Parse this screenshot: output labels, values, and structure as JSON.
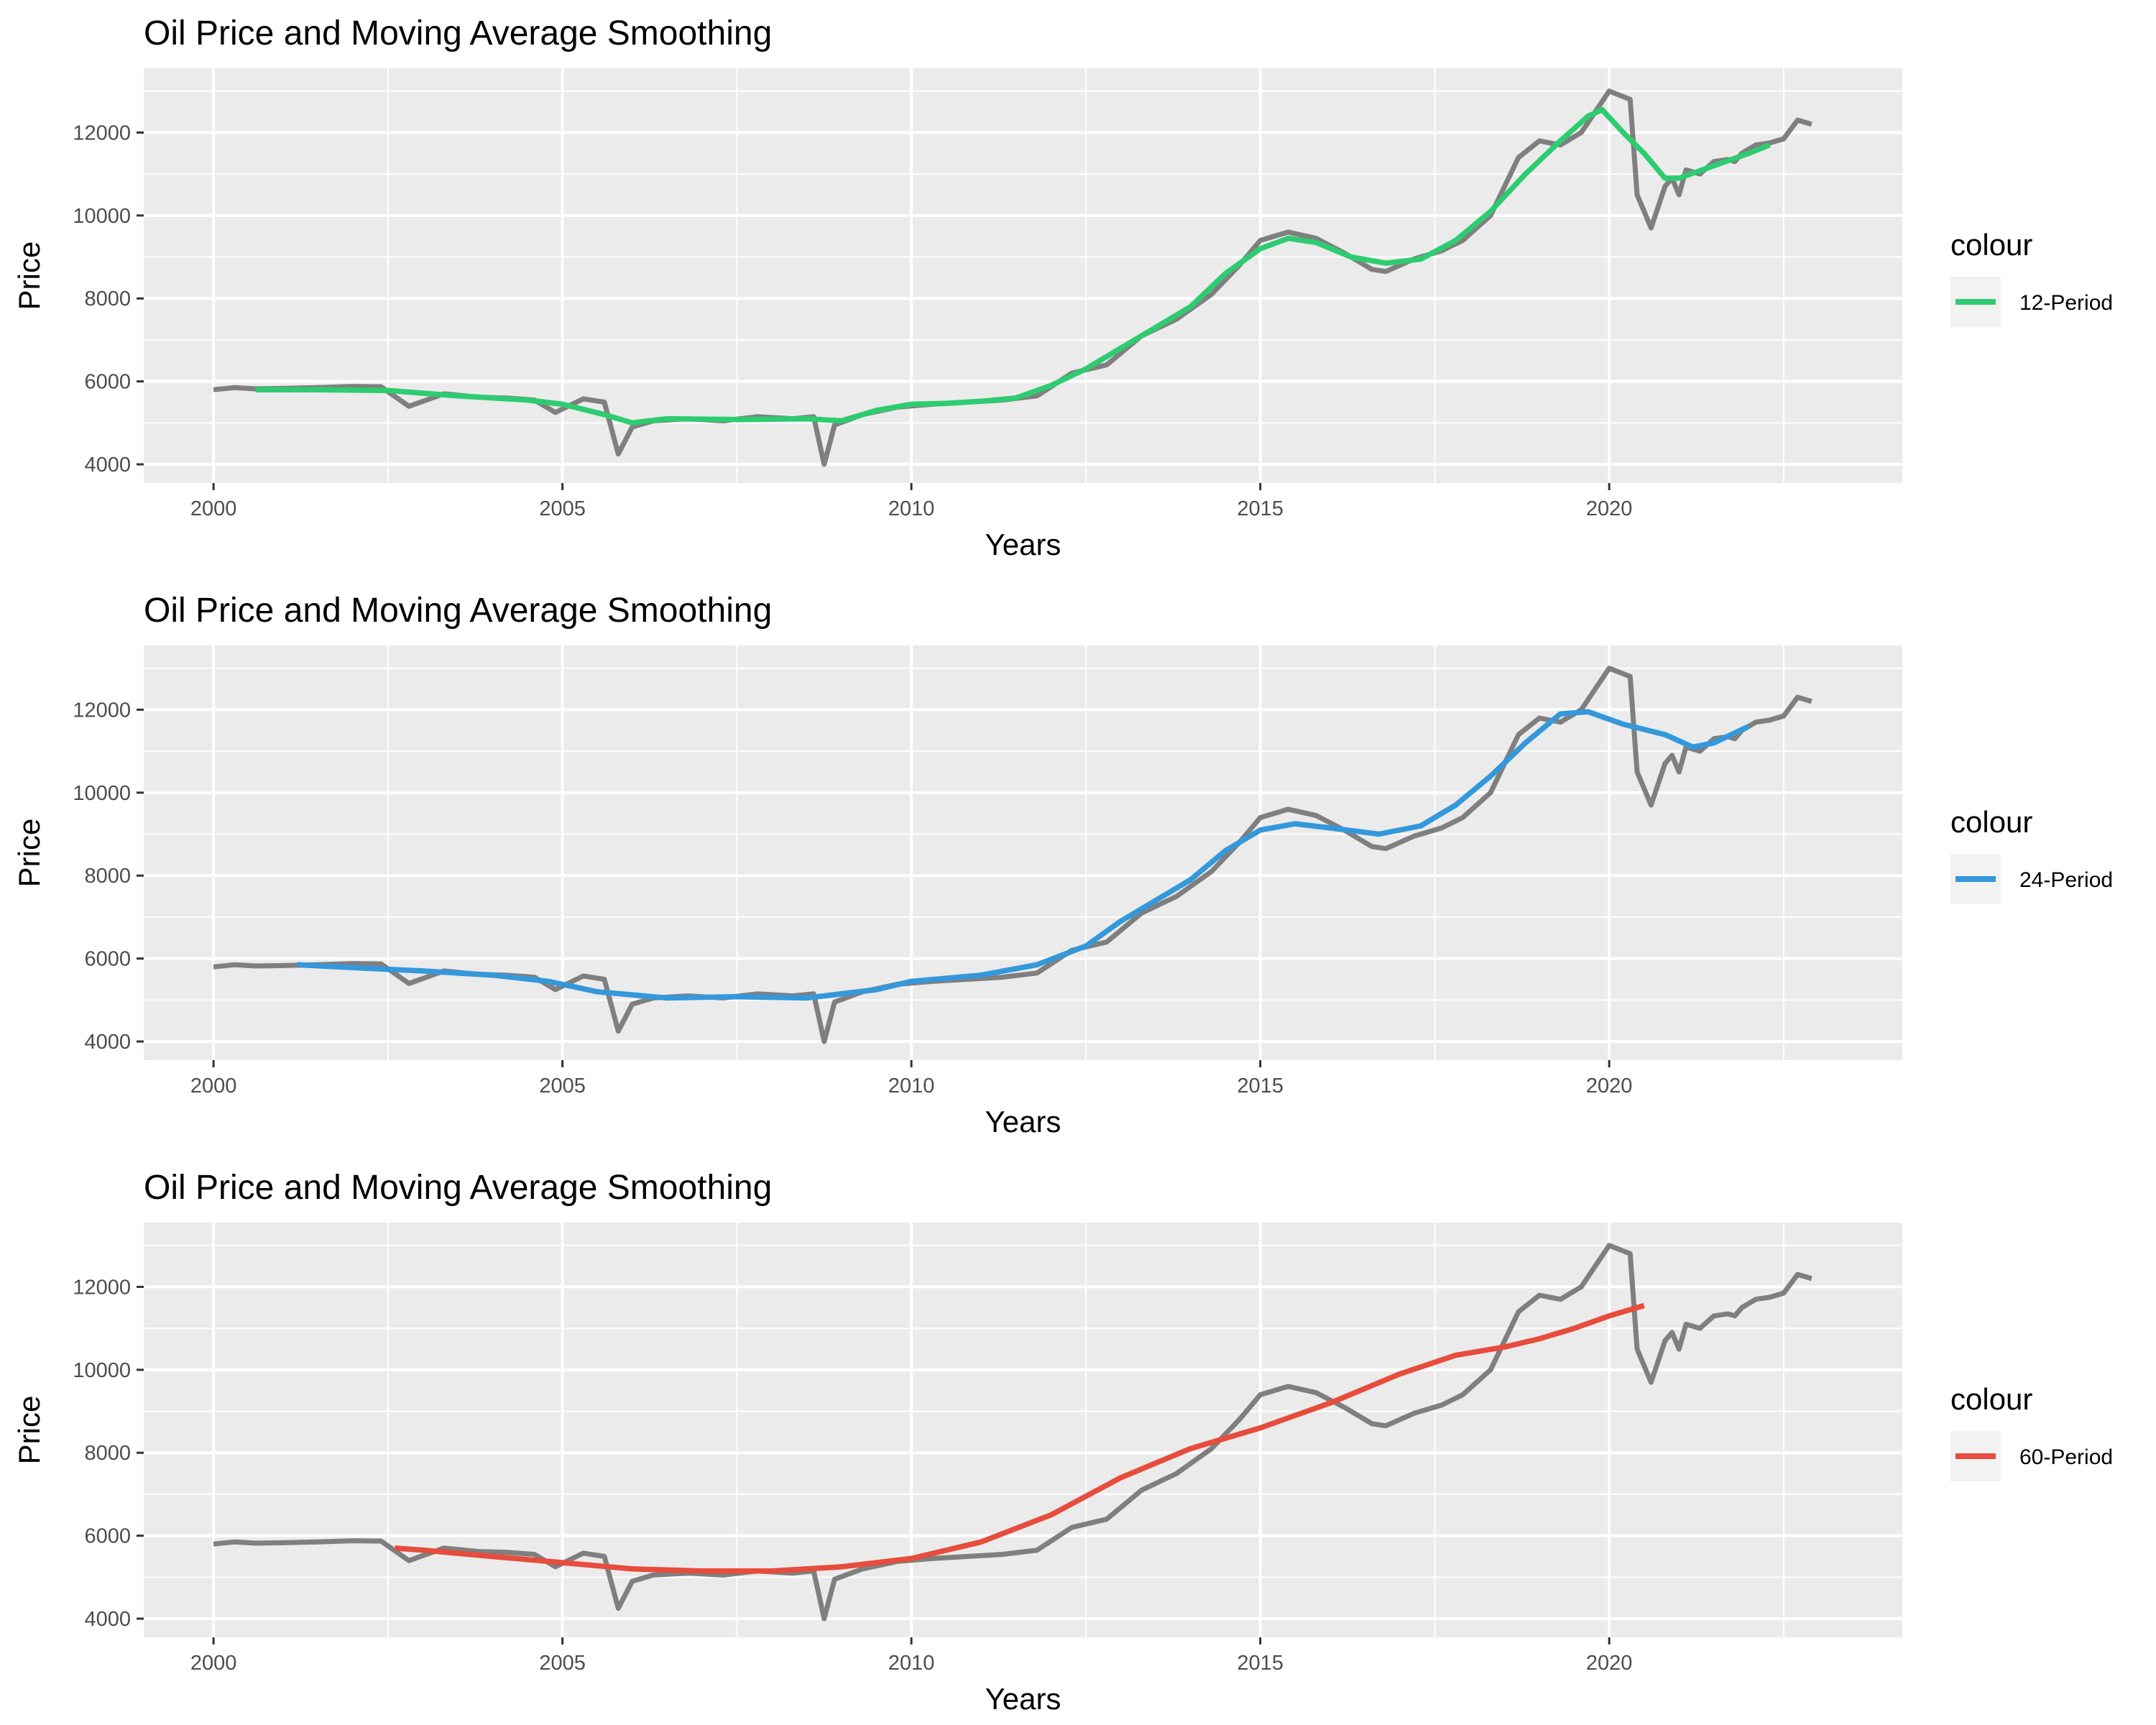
{
  "chart_data": [
    {
      "type": "line",
      "title": "Oil Price and Moving Average Smoothing",
      "xlabel": "Years",
      "ylabel": "Price",
      "xlim": [
        1999.0,
        2024.2
      ],
      "ylim": [
        3550,
        13550
      ],
      "x_ticks": [
        2000,
        2005,
        2010,
        2015,
        2020
      ],
      "x_tick_labels": [
        "2000",
        "2005",
        "2010",
        "2015",
        "2020"
      ],
      "y_ticks": [
        4000,
        6000,
        8000,
        10000,
        12000
      ],
      "y_tick_labels": [
        "4000",
        "6000",
        "8000",
        "10000",
        "12000"
      ],
      "grid": true,
      "legend": {
        "title": "colour",
        "position": "right",
        "entries": [
          {
            "label": "12-Period",
            "color": "#2ecc71"
          }
        ]
      },
      "series": [
        {
          "role": "price",
          "color": "#7f7f7f",
          "x": [
            2000.0,
            2000.3,
            2000.6,
            2001.0,
            2001.5,
            2002.0,
            2002.4,
            2002.8,
            2003.3,
            2003.8,
            2004.2,
            2004.6,
            2004.9,
            2005.3,
            2005.6,
            2005.8,
            2006.0,
            2006.3,
            2006.8,
            2007.3,
            2007.8,
            2008.3,
            2008.6,
            2008.75,
            2008.9,
            2009.3,
            2009.8,
            2010.3,
            2010.8,
            2011.3,
            2011.8,
            2012.3,
            2012.8,
            2013.3,
            2013.8,
            2014.3,
            2014.7,
            2015.0,
            2015.4,
            2015.8,
            2016.2,
            2016.6,
            2016.8,
            2017.2,
            2017.6,
            2017.9,
            2018.3,
            2018.7,
            2019.0,
            2019.3,
            2019.6,
            2019.8,
            2020.0,
            2020.3,
            2020.4,
            2020.6,
            2020.8,
            2020.9,
            2021.0,
            2021.1,
            2021.3,
            2021.5,
            2021.7,
            2021.8,
            2021.9,
            2022.1,
            2022.3,
            2022.5,
            2022.7,
            2022.9
          ],
          "y": [
            5800,
            5850,
            5820,
            5830,
            5850,
            5880,
            5870,
            5400,
            5700,
            5620,
            5600,
            5550,
            5250,
            5580,
            5500,
            4250,
            4900,
            5050,
            5100,
            5050,
            5150,
            5100,
            5150,
            4000,
            4950,
            5200,
            5380,
            5450,
            5500,
            5550,
            5650,
            6200,
            6400,
            7100,
            7500,
            8100,
            8800,
            9400,
            9600,
            9450,
            9100,
            8700,
            8650,
            8950,
            9150,
            9400,
            10000,
            11400,
            11800,
            11700,
            12000,
            12500,
            13000,
            12800,
            10500,
            9700,
            10700,
            10900,
            10500,
            11100,
            11000,
            11300,
            11350,
            11300,
            11500,
            11700,
            11750,
            11850,
            12300,
            12200
          ]
        },
        {
          "role": "smooth",
          "name": "12-Period",
          "color": "#2ecc71",
          "x": [
            2000.6,
            2001.5,
            2002.5,
            2003.5,
            2004.5,
            2005.0,
            2005.6,
            2006.0,
            2006.5,
            2007.5,
            2008.5,
            2009.0,
            2009.5,
            2010.0,
            2010.5,
            2011.0,
            2011.5,
            2012.0,
            2012.5,
            2013.0,
            2013.5,
            2014.0,
            2014.5,
            2015.0,
            2015.4,
            2015.8,
            2016.3,
            2016.8,
            2017.3,
            2017.8,
            2018.3,
            2018.8,
            2019.3,
            2019.7,
            2019.9,
            2020.2,
            2020.5,
            2020.8,
            2021.0,
            2021.5,
            2022.0,
            2022.3
          ],
          "y": [
            5800,
            5800,
            5780,
            5650,
            5550,
            5450,
            5200,
            5000,
            5100,
            5080,
            5100,
            5050,
            5300,
            5450,
            5470,
            5520,
            5600,
            5900,
            6300,
            6800,
            7300,
            7800,
            8600,
            9200,
            9450,
            9350,
            9000,
            8850,
            8950,
            9400,
            10100,
            11000,
            11800,
            12400,
            12550,
            12000,
            11500,
            10900,
            10900,
            11200,
            11500,
            11700
          ]
        }
      ]
    },
    {
      "type": "line",
      "title": "Oil Price and Moving Average Smoothing",
      "xlabel": "Years",
      "ylabel": "Price",
      "xlim": [
        1999.0,
        2024.2
      ],
      "ylim": [
        3550,
        13550
      ],
      "x_ticks": [
        2000,
        2005,
        2010,
        2015,
        2020
      ],
      "x_tick_labels": [
        "2000",
        "2005",
        "2010",
        "2015",
        "2020"
      ],
      "y_ticks": [
        4000,
        6000,
        8000,
        10000,
        12000
      ],
      "y_tick_labels": [
        "4000",
        "6000",
        "8000",
        "10000",
        "12000"
      ],
      "grid": true,
      "legend": {
        "title": "colour",
        "position": "right",
        "entries": [
          {
            "label": "24-Period",
            "color": "#3498db"
          }
        ]
      },
      "series": [
        {
          "role": "price",
          "color": "#7f7f7f",
          "x": [
            2000.0,
            2000.3,
            2000.6,
            2001.0,
            2001.5,
            2002.0,
            2002.4,
            2002.8,
            2003.3,
            2003.8,
            2004.2,
            2004.6,
            2004.9,
            2005.3,
            2005.6,
            2005.8,
            2006.0,
            2006.3,
            2006.8,
            2007.3,
            2007.8,
            2008.3,
            2008.6,
            2008.75,
            2008.9,
            2009.3,
            2009.8,
            2010.3,
            2010.8,
            2011.3,
            2011.8,
            2012.3,
            2012.8,
            2013.3,
            2013.8,
            2014.3,
            2014.7,
            2015.0,
            2015.4,
            2015.8,
            2016.2,
            2016.6,
            2016.8,
            2017.2,
            2017.6,
            2017.9,
            2018.3,
            2018.7,
            2019.0,
            2019.3,
            2019.6,
            2019.8,
            2020.0,
            2020.3,
            2020.4,
            2020.6,
            2020.8,
            2020.9,
            2021.0,
            2021.1,
            2021.3,
            2021.5,
            2021.7,
            2021.8,
            2021.9,
            2022.1,
            2022.3,
            2022.5,
            2022.7,
            2022.9
          ],
          "y": [
            5800,
            5850,
            5820,
            5830,
            5850,
            5880,
            5870,
            5400,
            5700,
            5620,
            5600,
            5550,
            5250,
            5580,
            5500,
            4250,
            4900,
            5050,
            5100,
            5050,
            5150,
            5100,
            5150,
            4000,
            4950,
            5200,
            5380,
            5450,
            5500,
            5550,
            5650,
            6200,
            6400,
            7100,
            7500,
            8100,
            8800,
            9400,
            9600,
            9450,
            9100,
            8700,
            8650,
            8950,
            9150,
            9400,
            10000,
            11400,
            11800,
            11700,
            12000,
            12500,
            13000,
            12800,
            10500,
            9700,
            10700,
            10900,
            10500,
            11100,
            11000,
            11300,
            11350,
            11300,
            11500,
            11700,
            11750,
            11850,
            12300,
            12200
          ]
        },
        {
          "role": "smooth",
          "name": "24-Period",
          "color": "#3498db",
          "x": [
            2001.2,
            2002.0,
            2003.0,
            2004.0,
            2004.8,
            2005.5,
            2006.5,
            2007.5,
            2008.5,
            2009.5,
            2010.0,
            2011.0,
            2011.8,
            2012.5,
            2013.0,
            2013.5,
            2014.0,
            2014.5,
            2015.0,
            2015.5,
            2016.0,
            2016.7,
            2017.3,
            2017.8,
            2018.3,
            2018.8,
            2019.3,
            2019.7,
            2020.2,
            2020.8,
            2021.2,
            2021.5,
            2022.0
          ],
          "y": [
            5850,
            5780,
            5700,
            5600,
            5450,
            5200,
            5050,
            5080,
            5050,
            5250,
            5450,
            5600,
            5850,
            6300,
            6900,
            7400,
            7900,
            8600,
            9100,
            9250,
            9150,
            9000,
            9200,
            9700,
            10400,
            11200,
            11900,
            11950,
            11650,
            11400,
            11100,
            11200,
            11600
          ]
        }
      ]
    },
    {
      "type": "line",
      "title": "Oil Price and Moving Average Smoothing",
      "xlabel": "Years",
      "ylabel": "Price",
      "xlim": [
        1999.0,
        2024.2
      ],
      "ylim": [
        3550,
        13550
      ],
      "x_ticks": [
        2000,
        2005,
        2010,
        2015,
        2020
      ],
      "x_tick_labels": [
        "2000",
        "2005",
        "2010",
        "2015",
        "2020"
      ],
      "y_ticks": [
        4000,
        6000,
        8000,
        10000,
        12000
      ],
      "y_tick_labels": [
        "4000",
        "6000",
        "8000",
        "10000",
        "12000"
      ],
      "grid": true,
      "legend": {
        "title": "colour",
        "position": "right",
        "entries": [
          {
            "label": "60-Period",
            "color": "#e74c3c"
          }
        ]
      },
      "series": [
        {
          "role": "price",
          "color": "#7f7f7f",
          "x": [
            2000.0,
            2000.3,
            2000.6,
            2001.0,
            2001.5,
            2002.0,
            2002.4,
            2002.8,
            2003.3,
            2003.8,
            2004.2,
            2004.6,
            2004.9,
            2005.3,
            2005.6,
            2005.8,
            2006.0,
            2006.3,
            2006.8,
            2007.3,
            2007.8,
            2008.3,
            2008.6,
            2008.75,
            2008.9,
            2009.3,
            2009.8,
            2010.3,
            2010.8,
            2011.3,
            2011.8,
            2012.3,
            2012.8,
            2013.3,
            2013.8,
            2014.3,
            2014.7,
            2015.0,
            2015.4,
            2015.8,
            2016.2,
            2016.6,
            2016.8,
            2017.2,
            2017.6,
            2017.9,
            2018.3,
            2018.7,
            2019.0,
            2019.3,
            2019.6,
            2019.8,
            2020.0,
            2020.3,
            2020.4,
            2020.6,
            2020.8,
            2020.9,
            2021.0,
            2021.1,
            2021.3,
            2021.5,
            2021.7,
            2021.8,
            2021.9,
            2022.1,
            2022.3,
            2022.5,
            2022.7,
            2022.9
          ],
          "y": [
            5800,
            5850,
            5820,
            5830,
            5850,
            5880,
            5870,
            5400,
            5700,
            5620,
            5600,
            5550,
            5250,
            5580,
            5500,
            4250,
            4900,
            5050,
            5100,
            5050,
            5150,
            5100,
            5150,
            4000,
            4950,
            5200,
            5380,
            5450,
            5500,
            5550,
            5650,
            6200,
            6400,
            7100,
            7500,
            8100,
            8800,
            9400,
            9600,
            9450,
            9100,
            8700,
            8650,
            8950,
            9150,
            9400,
            10000,
            11400,
            11800,
            11700,
            12000,
            12500,
            13000,
            12800,
            10500,
            9700,
            10700,
            10900,
            10500,
            11100,
            11000,
            11300,
            11350,
            11300,
            11500,
            11700,
            11750,
            11850,
            12300,
            12200
          ]
        },
        {
          "role": "smooth",
          "name": "60-Period",
          "color": "#e74c3c",
          "x": [
            2002.6,
            2003.0,
            2004.0,
            2005.0,
            2006.0,
            2007.0,
            2008.0,
            2009.0,
            2010.0,
            2011.0,
            2012.0,
            2013.0,
            2014.0,
            2015.0,
            2016.0,
            2017.0,
            2017.8,
            2018.5,
            2019.0,
            2019.5,
            2020.0,
            2020.5
          ],
          "y": [
            5700,
            5650,
            5500,
            5350,
            5200,
            5150,
            5150,
            5250,
            5450,
            5850,
            6500,
            7400,
            8100,
            8600,
            9200,
            9900,
            10350,
            10550,
            10750,
            11000,
            11300,
            11550
          ]
        }
      ]
    }
  ]
}
